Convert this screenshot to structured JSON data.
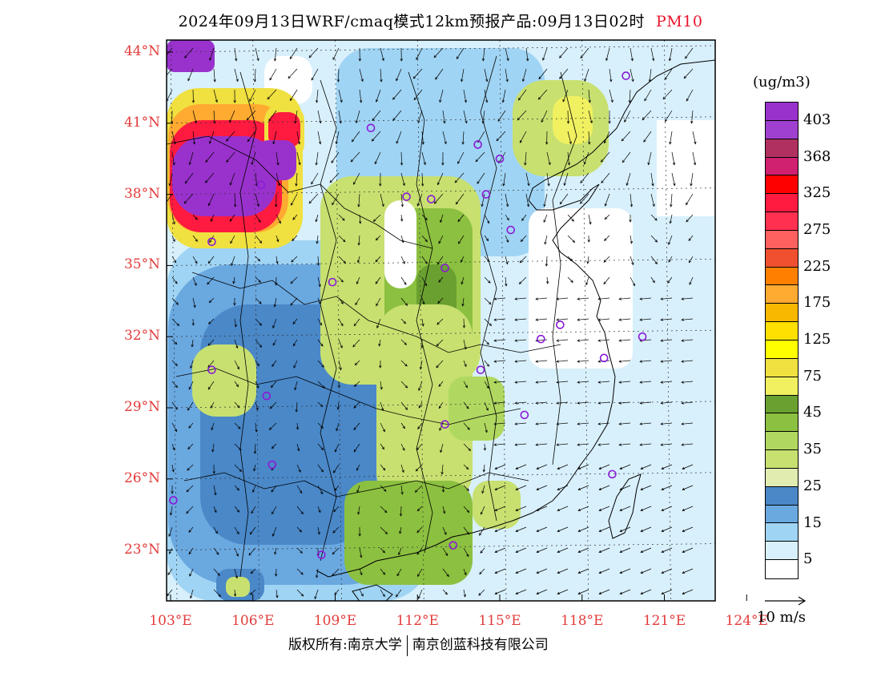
{
  "title": {
    "main": "2024年09月13日WRF/cmaq模式12km预报产品:09月13日02时",
    "pollutant": "PM10",
    "pollutant_color": "#e8142c"
  },
  "axes": {
    "lat_labels": [
      "44°N",
      "41°N",
      "38°N",
      "35°N",
      "32°N",
      "29°N",
      "26°N",
      "23°N"
    ],
    "lon_labels": [
      "103°E",
      "106°E",
      "109°E",
      "112°E",
      "115°E",
      "118°E",
      "121°E",
      "124°E"
    ],
    "label_color": "#e33b3b"
  },
  "legend": {
    "unit": "(ug/m3)",
    "colors": [
      "#9932cc",
      "#a040d0",
      "#b03060",
      "#d02070",
      "#ff0000",
      "#ff1a40",
      "#ff3050",
      "#ff6060",
      "#f05030",
      "#ff8000",
      "#ffaa30",
      "#f8b800",
      "#ffe000",
      "#ffff00",
      "#f0e040",
      "#f0f060",
      "#6aa030",
      "#8cc040",
      "#b0d860",
      "#c8e070",
      "#e0ecb0",
      "#4a88c8",
      "#6aa8e0",
      "#a0d4f4",
      "#d8f0fc",
      "#ffffff"
    ],
    "labels": [
      "403",
      "368",
      "325",
      "275",
      "225",
      "175",
      "125",
      "75",
      "45",
      "35",
      "25",
      "15",
      "5"
    ]
  },
  "wind_reference": {
    "label": "10 m/s"
  },
  "copyright": {
    "left": "版权所有:南京大学",
    "right": "南京创蓝科技有限公司"
  },
  "stations": [
    {
      "lon": 103.1,
      "lat": 25.1
    },
    {
      "lon": 104.5,
      "lat": 36.0
    },
    {
      "lon": 104.5,
      "lat": 30.6
    },
    {
      "lon": 106.5,
      "lat": 29.5
    },
    {
      "lon": 106.7,
      "lat": 26.6
    },
    {
      "lon": 106.3,
      "lat": 38.4
    },
    {
      "lon": 108.5,
      "lat": 22.8
    },
    {
      "lon": 108.9,
      "lat": 34.3
    },
    {
      "lon": 110.3,
      "lat": 40.8
    },
    {
      "lon": 111.6,
      "lat": 37.9
    },
    {
      "lon": 112.5,
      "lat": 37.8
    },
    {
      "lon": 113.0,
      "lat": 34.9
    },
    {
      "lon": 113.0,
      "lat": 28.3
    },
    {
      "lon": 114.3,
      "lat": 30.6
    },
    {
      "lon": 114.5,
      "lat": 38.0
    },
    {
      "lon": 113.3,
      "lat": 23.2
    },
    {
      "lon": 115.0,
      "lat": 39.5
    },
    {
      "lon": 115.9,
      "lat": 28.7
    },
    {
      "lon": 115.4,
      "lat": 36.5
    },
    {
      "lon": 116.5,
      "lat": 31.9
    },
    {
      "lon": 117.2,
      "lat": 32.5
    },
    {
      "lon": 118.8,
      "lat": 31.1
    },
    {
      "lon": 119.1,
      "lat": 26.2
    },
    {
      "lon": 120.2,
      "lat": 32.0
    },
    {
      "lon": 114.2,
      "lat": 40.1
    },
    {
      "lon": 119.6,
      "lat": 43.0
    }
  ]
}
